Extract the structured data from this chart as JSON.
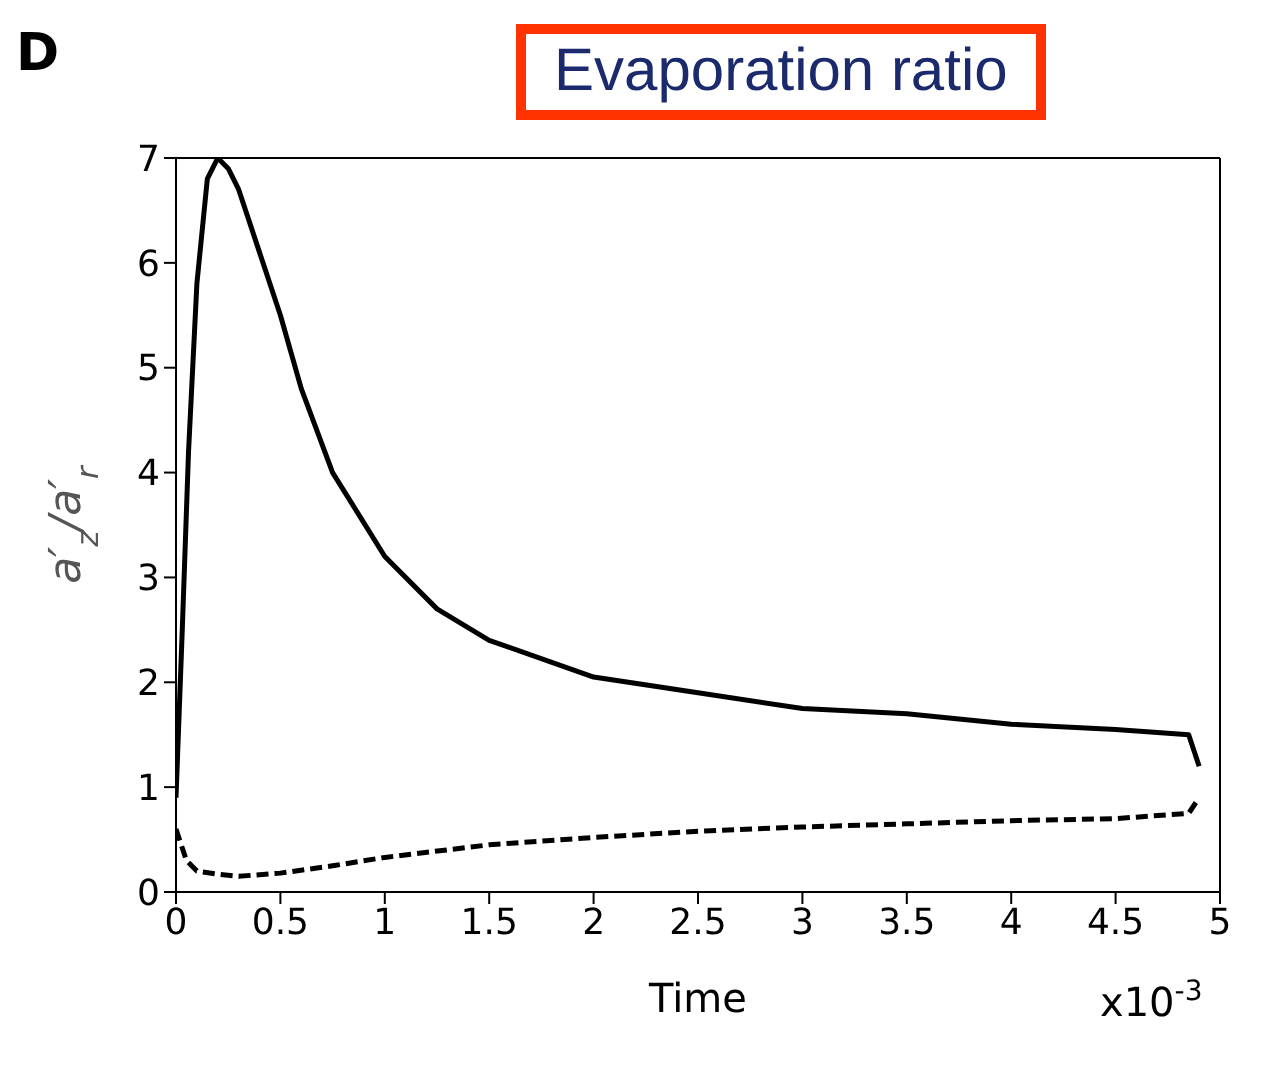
{
  "chart_data": {
    "type": "line",
    "title": "Evaporation ratio",
    "xlabel": "Time",
    "ylabel": "a′$_{z}$/a′$_{r}$",
    "annotations": [
      "D",
      "x10$^{-3}$"
    ],
    "xlim": [
      0,
      5
    ],
    "xticks": [
      0,
      0.5,
      1,
      1.5,
      2,
      2.5,
      3,
      3.5,
      4,
      4.5,
      5
    ],
    "ylim": [
      0,
      7
    ],
    "yticks": [
      0,
      1,
      2,
      3,
      4,
      5,
      6,
      7
    ],
    "marker": "none",
    "series": [
      {
        "color": "#000000",
        "line_style": "solid",
        "x": [
          0,
          0.03,
          0.06,
          0.1,
          0.15,
          0.2,
          0.25,
          0.3,
          0.4,
          0.5,
          0.6,
          0.75,
          1,
          1.25,
          1.5,
          2,
          2.5,
          3,
          3.5,
          4,
          4.5,
          4.85,
          4.9
        ],
        "values": [
          0.9,
          2.5,
          4.2,
          5.8,
          6.8,
          7,
          6.9,
          6.7,
          6.1,
          5.5,
          4.8,
          4,
          3.2,
          2.7,
          2.4,
          2.05,
          1.9,
          1.75,
          1.7,
          1.6,
          1.55,
          1.5,
          1.2
        ]
      },
      {
        "color": "#000000",
        "line_style": "dashed",
        "x": [
          0,
          0.05,
          0.1,
          0.2,
          0.3,
          0.5,
          0.75,
          1,
          1.5,
          2,
          2.5,
          3,
          3.5,
          4,
          4.5,
          4.85,
          4.9
        ],
        "values": [
          0.6,
          0.3,
          0.2,
          0.17,
          0.15,
          0.18,
          0.25,
          0.33,
          0.45,
          0.52,
          0.58,
          0.62,
          0.65,
          0.68,
          0.7,
          0.75,
          0.9
        ]
      }
    ]
  }
}
